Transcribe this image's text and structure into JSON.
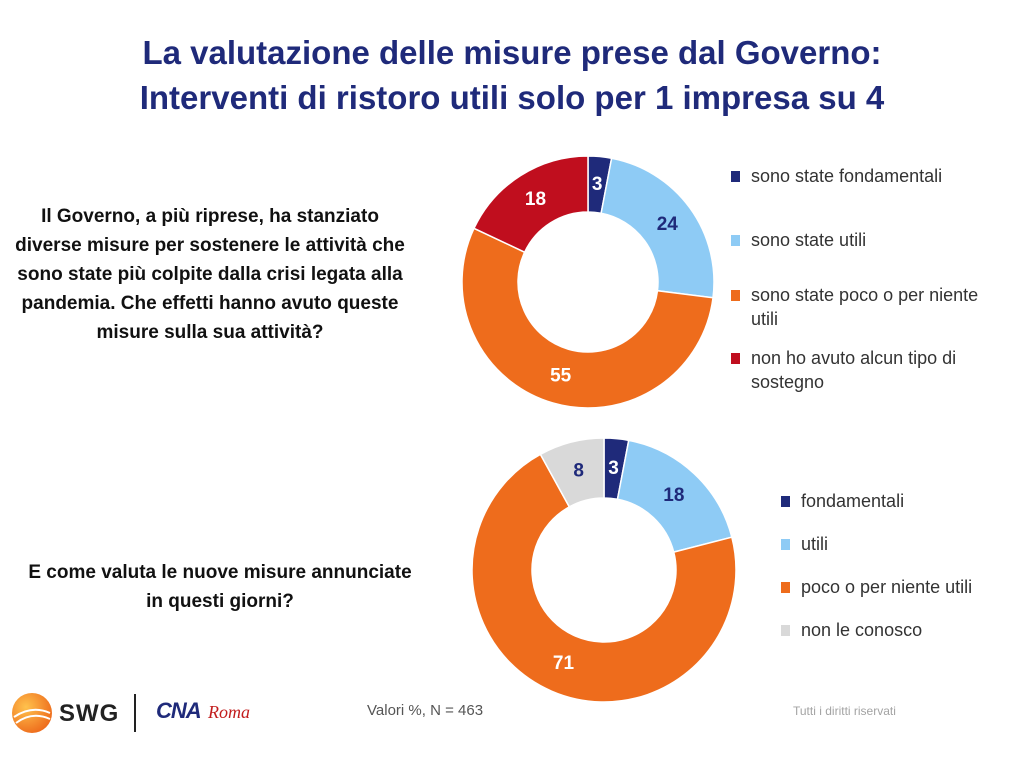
{
  "title": {
    "line1": "La valutazione delle misure prese dal Governo:",
    "line2": "Interventi di ristoro utili solo per 1 impresa su 4"
  },
  "questions": {
    "q1": "Il Governo, a più riprese, ha stanziato diverse misure per sostenere le attività che sono state più colpite dalla crisi legata alla pandemia. Che effetti hanno avuto queste misure sulla sua attività?",
    "q2": "E come valuta le nuove misure annunciate in questi giorni?"
  },
  "chart_data": [
    {
      "type": "pie",
      "style": "donut",
      "labels": [
        "sono state fondamentali",
        "sono state utili",
        "sono state poco o per niente utili",
        "non ho avuto alcun tipo di sostegno"
      ],
      "values": [
        3,
        24,
        55,
        18
      ],
      "colors": [
        "#1f2a7a",
        "#8ecbf5",
        "#ee6c1c",
        "#c00e1e"
      ],
      "label_colors": [
        "#ffffff",
        "#1f2a7a",
        "#ffffff",
        "#ffffff"
      ],
      "legend": "right"
    },
    {
      "type": "pie",
      "style": "donut",
      "labels": [
        "fondamentali",
        "utili",
        "poco o per niente utili",
        "non le conosco"
      ],
      "values": [
        3,
        18,
        71,
        8
      ],
      "colors": [
        "#1f2a7a",
        "#8ecbf5",
        "#ee6c1c",
        "#d9d9d9"
      ],
      "label_colors": [
        "#ffffff",
        "#1f2a7a",
        "#ffffff",
        "#1f2a7a"
      ],
      "legend": "right"
    }
  ],
  "footer": {
    "note": "Valori %, N = 463",
    "rights": "Tutti i diritti riservati"
  },
  "logos": {
    "swg": "SWG",
    "cna": "CNA",
    "roma": "Roma",
    "swg_color": "#ee7a1c"
  }
}
